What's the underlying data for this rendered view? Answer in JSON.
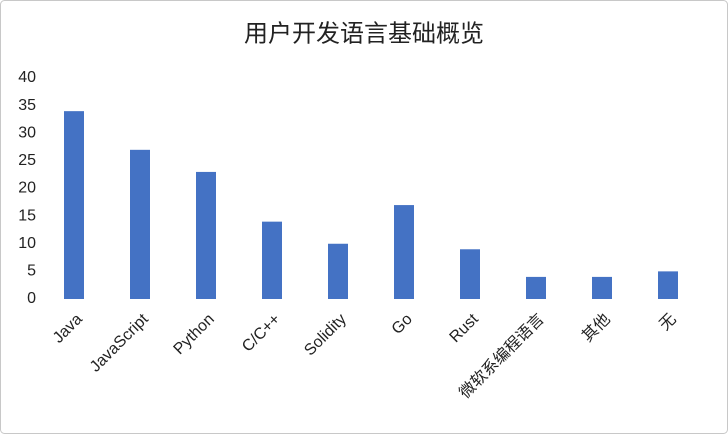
{
  "chart_data": {
    "type": "bar",
    "title": "用户开发语言基础概览",
    "categories": [
      "Java",
      "JavaScript",
      "Python",
      "C/C++",
      "Solidity",
      "Go",
      "Rust",
      "微软系编程语言",
      "其他",
      "无"
    ],
    "values": [
      34,
      27,
      23,
      14,
      10,
      17,
      9,
      4,
      4,
      5
    ],
    "color": "#4472c4",
    "ylim": [
      0,
      40
    ],
    "yticks": [
      0,
      5,
      10,
      15,
      20,
      25,
      30,
      35,
      40
    ],
    "grid": false
  }
}
